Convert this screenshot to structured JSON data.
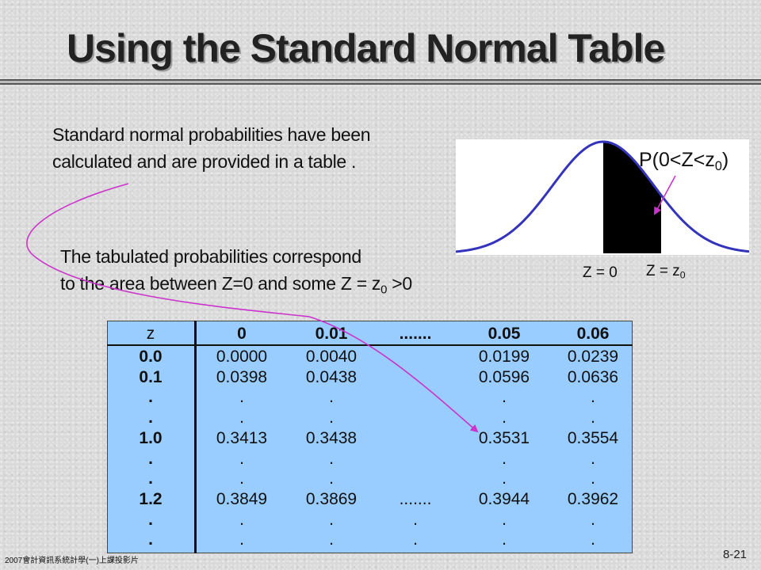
{
  "slide": {
    "title": "Using the Standard Normal Table",
    "para1_line1": "Standard normal probabilities have been",
    "para1_line2": "calculated and are provided in a table .",
    "para2_line1": "The tabulated probabilities correspond",
    "para2_line2_a": "to the area between Z=0 and some Z = z",
    "para2_line2_sub": "0",
    "para2_line2_b": " >0"
  },
  "curve": {
    "prob_label_a": "P(0<Z<z",
    "prob_label_sub": "0",
    "prob_label_b": ")",
    "z0_label": "Z = 0",
    "zz_label_a": "Z = z",
    "zz_label_sub": "0",
    "curve_color": "#3333bb",
    "arrow_color": "#cc33cc"
  },
  "table": {
    "header": [
      "z",
      "0",
      "0.01",
      ".......",
      "0.05",
      "0.06"
    ],
    "rows": [
      [
        "0.0",
        "0.0000",
        "0.0040",
        "",
        "0.0199",
        "0.0239"
      ],
      [
        "0.1",
        "0.0398",
        "0.0438",
        "",
        "0.0596",
        "0.0636"
      ],
      [
        ".",
        ".",
        ".",
        "",
        ".",
        "."
      ],
      [
        ".",
        ".",
        ".",
        "",
        ".",
        "."
      ],
      [
        "1.0",
        "0.3413",
        "0.3438",
        "",
        "0.3531",
        "0.3554"
      ],
      [
        ".",
        ".",
        ".",
        "",
        ".",
        "."
      ],
      [
        ".",
        ".",
        ".",
        "",
        ".",
        "."
      ],
      [
        "1.2",
        "0.3849",
        "0.3869",
        ".......",
        "0.3944",
        "0.3962"
      ],
      [
        ".",
        ".",
        ".",
        ".",
        ".",
        "."
      ],
      [
        ".",
        ".",
        ".",
        ".",
        ".",
        "."
      ]
    ],
    "background_color": "#99ccff"
  },
  "footer": {
    "left": "2007會計資訊系統計學(一)上課投影片",
    "page": "8-21"
  }
}
